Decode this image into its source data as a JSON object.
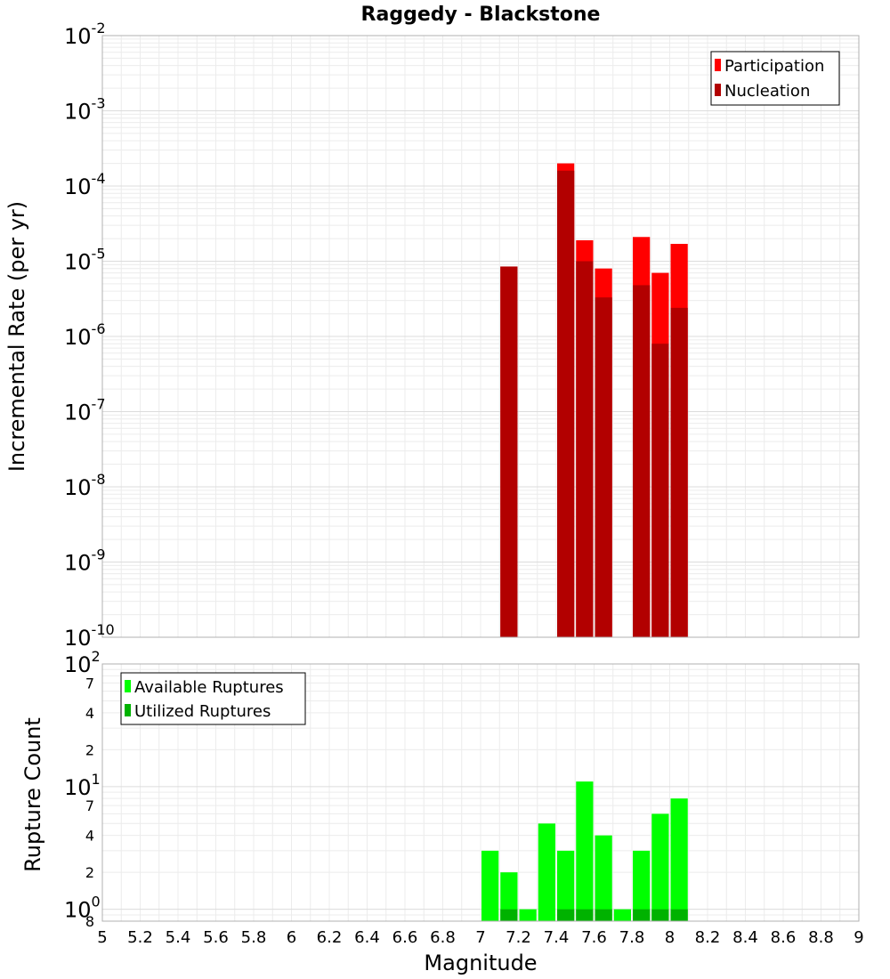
{
  "chart_data": [
    {
      "type": "bar",
      "title": "Raggedy - Blackstone",
      "xlabel": "Magnitude",
      "ylabel": "Incremental Rate (per yr)",
      "yscale": "log",
      "ylim": [
        1e-10,
        0.01
      ],
      "xlim": [
        5,
        9
      ],
      "grid": true,
      "legend_position": "top-right",
      "bar_width": 0.1,
      "y_decade_labels": [
        {
          "base": "10",
          "exp": "-10"
        },
        {
          "base": "10",
          "exp": "-9"
        },
        {
          "base": "10",
          "exp": "-8"
        },
        {
          "base": "10",
          "exp": "-7"
        },
        {
          "base": "10",
          "exp": "-6"
        },
        {
          "base": "10",
          "exp": "-5"
        },
        {
          "base": "10",
          "exp": "-4"
        },
        {
          "base": "10",
          "exp": "-3"
        },
        {
          "base": "10",
          "exp": "-2"
        }
      ],
      "series": [
        {
          "name": "Participation",
          "color": "#ff0000",
          "x": [
            7.15,
            7.45,
            7.55,
            7.65,
            7.85,
            7.95,
            8.05
          ],
          "values": [
            8.5e-06,
            0.0002,
            1.9e-05,
            8e-06,
            2.1e-05,
            7e-06,
            1.7e-05
          ]
        },
        {
          "name": "Nucleation",
          "color": "#b20000",
          "x": [
            7.15,
            7.45,
            7.55,
            7.65,
            7.85,
            7.95,
            8.05
          ],
          "values": [
            8.5e-06,
            0.00016,
            1e-05,
            3.3e-06,
            4.8e-06,
            8e-07,
            2.4e-06
          ]
        }
      ]
    },
    {
      "type": "bar",
      "xlabel": "Magnitude",
      "ylabel": "Rupture Count",
      "yscale": "log",
      "ylim": [
        0.8,
        100
      ],
      "xlim": [
        5,
        9
      ],
      "grid": true,
      "legend_position": "top-left",
      "bar_width": 0.1,
      "x_ticks": [
        "5",
        "5.2",
        "5.4",
        "5.6",
        "5.8",
        "6",
        "6.2",
        "6.4",
        "6.6",
        "6.8",
        "7",
        "7.2",
        "7.4",
        "7.6",
        "7.8",
        "8",
        "8.2",
        "8.4",
        "8.6",
        "8.8",
        "9"
      ],
      "y_decade_labels": [
        {
          "base": "10",
          "exp": "0",
          "value": 1
        },
        {
          "base": "10",
          "exp": "1",
          "value": 10
        },
        {
          "base": "10",
          "exp": "2",
          "value": 100
        }
      ],
      "y_minor_labels": [
        "2",
        "4",
        "7",
        "2",
        "4",
        "7",
        "8"
      ],
      "y_minor_values": [
        2,
        4,
        7,
        20,
        40,
        70,
        0.8
      ],
      "series": [
        {
          "name": "Available Ruptures",
          "color": "#00ff00",
          "x": [
            7.05,
            7.15,
            7.25,
            7.35,
            7.45,
            7.55,
            7.65,
            7.75,
            7.85,
            7.95,
            8.05
          ],
          "values": [
            3,
            2,
            1,
            5,
            3,
            11,
            4,
            1,
            3,
            6,
            8
          ]
        },
        {
          "name": "Utilized Ruptures",
          "color": "#00b200",
          "x": [
            7.15,
            7.45,
            7.55,
            7.65,
            7.85,
            7.95,
            8.05
          ],
          "values": [
            1,
            1,
            1,
            1,
            1,
            1,
            1
          ]
        }
      ]
    }
  ]
}
